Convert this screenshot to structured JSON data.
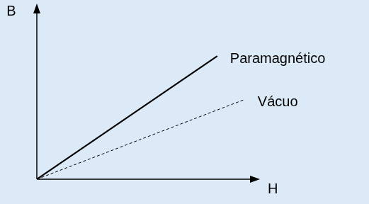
{
  "chart_data": {
    "type": "line",
    "x_label": "H",
    "y_label": "B",
    "xlim": [
      0,
      12
    ],
    "ylim": [
      0,
      10
    ],
    "tick_labels": false,
    "grid": false,
    "series": [
      {
        "name": "Paramagnético",
        "color": "#000000",
        "line_style": "solid",
        "x": [
          0,
          9.8
        ],
        "values": [
          0,
          7.1
        ]
      },
      {
        "name": "Vácuo",
        "color": "#000000",
        "line_style": "dashed",
        "x": [
          0,
          11.3
        ],
        "values": [
          0,
          4.6
        ]
      }
    ]
  }
}
